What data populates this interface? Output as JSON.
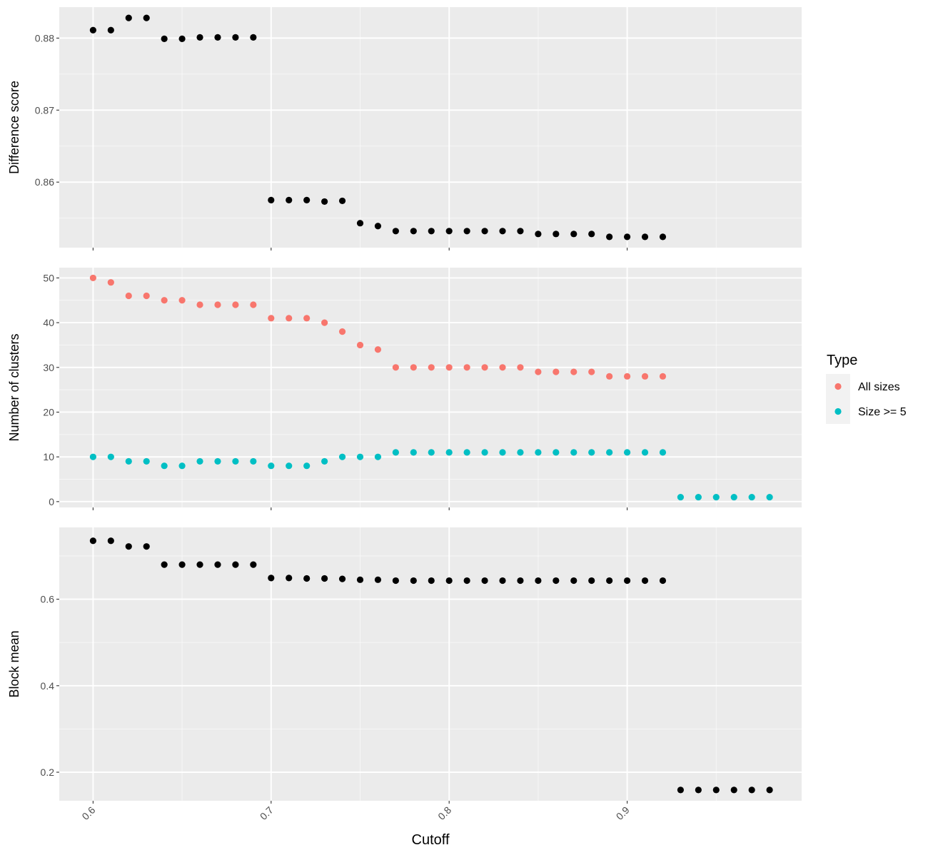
{
  "chart_data": {
    "type": "scatter",
    "xlabel": "Cutoff",
    "x_ticks": [
      "0.6",
      "0.7",
      "0.8",
      "0.9"
    ],
    "xlim": [
      0.581,
      0.998
    ],
    "legend": {
      "title": "Type",
      "placement": "right",
      "entries": [
        {
          "label": "All sizes",
          "color": "#F8766D"
        },
        {
          "label": "Size >= 5",
          "color": "#00BFC4"
        }
      ]
    },
    "panels": [
      {
        "ylabel": "Difference score",
        "ylim": [
          0.8509,
          0.8843
        ],
        "y_ticks": [
          "0.86",
          "0.87",
          "0.88"
        ],
        "series": [
          {
            "color": "#000000",
            "x": [
              0.6,
              0.61,
              0.62,
              0.63,
              0.64,
              0.65,
              0.66,
              0.67,
              0.68,
              0.69,
              0.7,
              0.71,
              0.72,
              0.73,
              0.74,
              0.75,
              0.76,
              0.77,
              0.78,
              0.79,
              0.8,
              0.81,
              0.82,
              0.83,
              0.84,
              0.85,
              0.86,
              0.87,
              0.88,
              0.89,
              0.9,
              0.91,
              0.92
            ],
            "y": [
              0.8811,
              0.8811,
              0.8828,
              0.8828,
              0.8799,
              0.8799,
              0.8801,
              0.8801,
              0.8801,
              0.8801,
              0.8575,
              0.8575,
              0.8575,
              0.8573,
              0.8574,
              0.8543,
              0.8539,
              0.8532,
              0.8532,
              0.8532,
              0.8532,
              0.8532,
              0.8532,
              0.8532,
              0.8532,
              0.8528,
              0.8528,
              0.8528,
              0.8528,
              0.8524,
              0.8524,
              0.8524,
              0.8524
            ]
          }
        ]
      },
      {
        "ylabel": "Number of clusters",
        "ylim": [
          -1.3,
          52.3
        ],
        "y_ticks": [
          "0",
          "10",
          "20",
          "30",
          "40",
          "50"
        ],
        "series": [
          {
            "name": "All sizes",
            "color": "#F8766D",
            "x": [
              0.6,
              0.61,
              0.62,
              0.63,
              0.64,
              0.65,
              0.66,
              0.67,
              0.68,
              0.69,
              0.7,
              0.71,
              0.72,
              0.73,
              0.74,
              0.75,
              0.76,
              0.77,
              0.78,
              0.79,
              0.8,
              0.81,
              0.82,
              0.83,
              0.84,
              0.85,
              0.86,
              0.87,
              0.88,
              0.89,
              0.9,
              0.91,
              0.92
            ],
            "y": [
              50,
              49,
              46,
              46,
              45,
              45,
              44,
              44,
              44,
              44,
              41,
              41,
              41,
              40,
              38,
              35,
              34,
              30,
              30,
              30,
              30,
              30,
              30,
              30,
              30,
              29,
              29,
              29,
              29,
              28,
              28,
              28,
              28
            ]
          },
          {
            "name": "Size >= 5",
            "color": "#00BFC4",
            "x": [
              0.6,
              0.61,
              0.62,
              0.63,
              0.64,
              0.65,
              0.66,
              0.67,
              0.68,
              0.69,
              0.7,
              0.71,
              0.72,
              0.73,
              0.74,
              0.75,
              0.76,
              0.77,
              0.78,
              0.79,
              0.8,
              0.81,
              0.82,
              0.83,
              0.84,
              0.85,
              0.86,
              0.87,
              0.88,
              0.89,
              0.9,
              0.91,
              0.92,
              0.93,
              0.94,
              0.95,
              0.96,
              0.97,
              0.98
            ],
            "y": [
              10,
              10,
              9,
              9,
              8,
              8,
              9,
              9,
              9,
              9,
              8,
              8,
              8,
              9,
              10,
              10,
              10,
              11,
              11,
              11,
              11,
              11,
              11,
              11,
              11,
              11,
              11,
              11,
              11,
              11,
              11,
              11,
              11,
              1,
              1,
              1,
              1,
              1,
              1
            ]
          }
        ]
      },
      {
        "ylabel": "Block mean",
        "ylim": [
          0.134,
          0.766
        ],
        "y_ticks": [
          "0.2",
          "0.4",
          "0.6"
        ],
        "series": [
          {
            "color": "#000000",
            "x": [
              0.6,
              0.61,
              0.62,
              0.63,
              0.64,
              0.65,
              0.66,
              0.67,
              0.68,
              0.69,
              0.7,
              0.71,
              0.72,
              0.73,
              0.74,
              0.75,
              0.76,
              0.77,
              0.78,
              0.79,
              0.8,
              0.81,
              0.82,
              0.83,
              0.84,
              0.85,
              0.86,
              0.87,
              0.88,
              0.89,
              0.9,
              0.91,
              0.92,
              0.93,
              0.94,
              0.95,
              0.96,
              0.97,
              0.98
            ],
            "y": [
              0.735,
              0.735,
              0.722,
              0.722,
              0.68,
              0.68,
              0.68,
              0.68,
              0.68,
              0.68,
              0.649,
              0.649,
              0.648,
              0.648,
              0.647,
              0.645,
              0.645,
              0.643,
              0.643,
              0.643,
              0.643,
              0.643,
              0.643,
              0.643,
              0.643,
              0.643,
              0.643,
              0.643,
              0.643,
              0.643,
              0.643,
              0.643,
              0.643,
              0.159,
              0.159,
              0.159,
              0.159,
              0.159,
              0.159
            ]
          }
        ]
      }
    ]
  }
}
